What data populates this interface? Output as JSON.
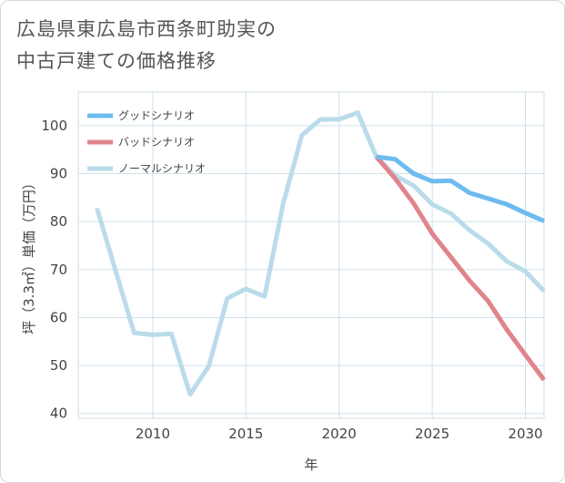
{
  "chart_data": {
    "type": "line",
    "title": [
      "広島県東広島市西条町助実の",
      "中古戸建ての価格推移"
    ],
    "xlabel": "年",
    "ylabel": "坪（3.3㎡）単価（万円）",
    "xlim": [
      2006,
      2031
    ],
    "ylim": [
      39,
      107
    ],
    "xticks": [
      2010,
      2015,
      2020,
      2025,
      2030
    ],
    "yticks": [
      40,
      50,
      60,
      70,
      80,
      90,
      100
    ],
    "series": [
      {
        "name": "グッドシナリオ",
        "color": "#6dbbef",
        "x": [
          2022,
          2023,
          2024,
          2025,
          2026,
          2027,
          2028,
          2029,
          2030,
          2031
        ],
        "y": [
          93.5,
          93.0,
          90.0,
          88.4,
          88.5,
          86.0,
          84.8,
          83.6,
          81.8,
          80.1
        ]
      },
      {
        "name": "バッドシナリオ",
        "color": "#e0848c",
        "x": [
          2022,
          2023,
          2024,
          2025,
          2026,
          2027,
          2028,
          2029,
          2030,
          2031
        ],
        "y": [
          93.5,
          89.0,
          83.8,
          77.5,
          72.6,
          67.7,
          63.4,
          57.5,
          52.2,
          47.0
        ]
      },
      {
        "name": "ノーマルシナリオ",
        "color": "#badcea",
        "x": [
          2007,
          2008,
          2009,
          2010,
          2011,
          2012,
          2013,
          2014,
          2015,
          2016,
          2017,
          2018,
          2019,
          2020,
          2021,
          2022,
          2023,
          2024,
          2025,
          2026,
          2027,
          2028,
          2029,
          2030,
          2031
        ],
        "y": [
          82.8,
          69.8,
          56.8,
          56.4,
          56.6,
          44.0,
          49.8,
          64.0,
          66.0,
          64.4,
          83.8,
          98.0,
          101.3,
          101.3,
          102.7,
          93.5,
          89.6,
          87.5,
          83.6,
          81.7,
          78.2,
          75.4,
          71.7,
          69.6,
          65.5
        ]
      }
    ],
    "grid": true,
    "legend_position": "top-left"
  }
}
